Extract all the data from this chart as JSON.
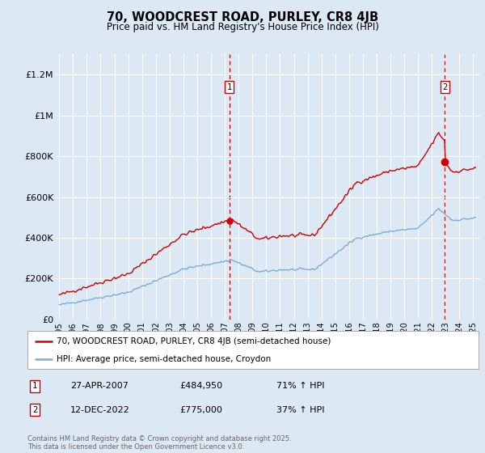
{
  "title": "70, WOODCREST ROAD, PURLEY, CR8 4JB",
  "subtitle": "Price paid vs. HM Land Registry's House Price Index (HPI)",
  "background_color": "#dce9f5",
  "ylim": [
    0,
    1300000
  ],
  "yticks": [
    0,
    200000,
    400000,
    600000,
    800000,
    1000000,
    1200000
  ],
  "ytick_labels": [
    "£0",
    "£200K",
    "£400K",
    "£600K",
    "£800K",
    "£1M",
    "£1.2M"
  ],
  "xlim_start": 1994.75,
  "xlim_end": 2025.5,
  "xticks": [
    1995,
    1996,
    1997,
    1998,
    1999,
    2000,
    2001,
    2002,
    2003,
    2004,
    2005,
    2006,
    2007,
    2008,
    2009,
    2010,
    2011,
    2012,
    2013,
    2014,
    2015,
    2016,
    2017,
    2018,
    2019,
    2020,
    2021,
    2022,
    2023,
    2024,
    2025
  ],
  "property_color": "#cc0000",
  "hpi_color": "#7aadd4",
  "vline_color": "#cc0000",
  "marker1_x": 2007.32,
  "marker1_y": 484950,
  "marker2_x": 2022.95,
  "marker2_y": 775000,
  "legend_property": "70, WOODCREST ROAD, PURLEY, CR8 4JB (semi-detached house)",
  "legend_hpi": "HPI: Average price, semi-detached house, Croydon",
  "annotation1_label": "1",
  "annotation2_label": "2",
  "sale1_date": "27-APR-2007",
  "sale1_price": "£484,950",
  "sale1_hpi": "71% ↑ HPI",
  "sale2_date": "12-DEC-2022",
  "sale2_price": "£775,000",
  "sale2_hpi": "37% ↑ HPI",
  "footer": "Contains HM Land Registry data © Crown copyright and database right 2025.\nThis data is licensed under the Open Government Licence v3.0."
}
